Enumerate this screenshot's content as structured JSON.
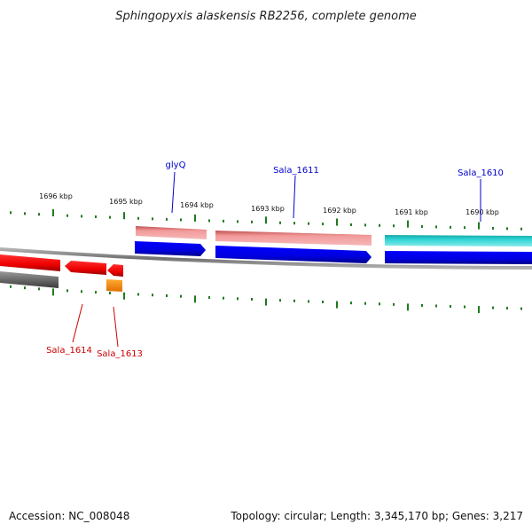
{
  "title": "Sphingopyxis alaskensis RB2256, complete genome",
  "footer": {
    "accession": "Accession: NC_008048",
    "summary": "Topology: circular; Length: 3,345,170 bp; Genes: 3,217"
  },
  "scale_labels": [
    "1696 kbp",
    "1695 kbp",
    "1694 kbp",
    "1693 kbp",
    "1692 kbp",
    "1691 kbp",
    "1690 kbp"
  ],
  "gene_labels": {
    "top": [
      "glyQ",
      "Sala_1611",
      "Sala_1610"
    ],
    "bottom": [
      "Sala_1614",
      "Sala_1613"
    ]
  },
  "colors": {
    "forward_label": "#0000cc",
    "reverse_label": "#cc0000",
    "tick": "#1f7a1f",
    "backbone": "#888888",
    "cds_light_red": "#f09090",
    "cds_blue": "#0000ee",
    "cds_cyan": "#20c8c8",
    "cds_red": "#ee0000",
    "cds_gray": "#707070",
    "cds_orange": "#ff8800"
  }
}
